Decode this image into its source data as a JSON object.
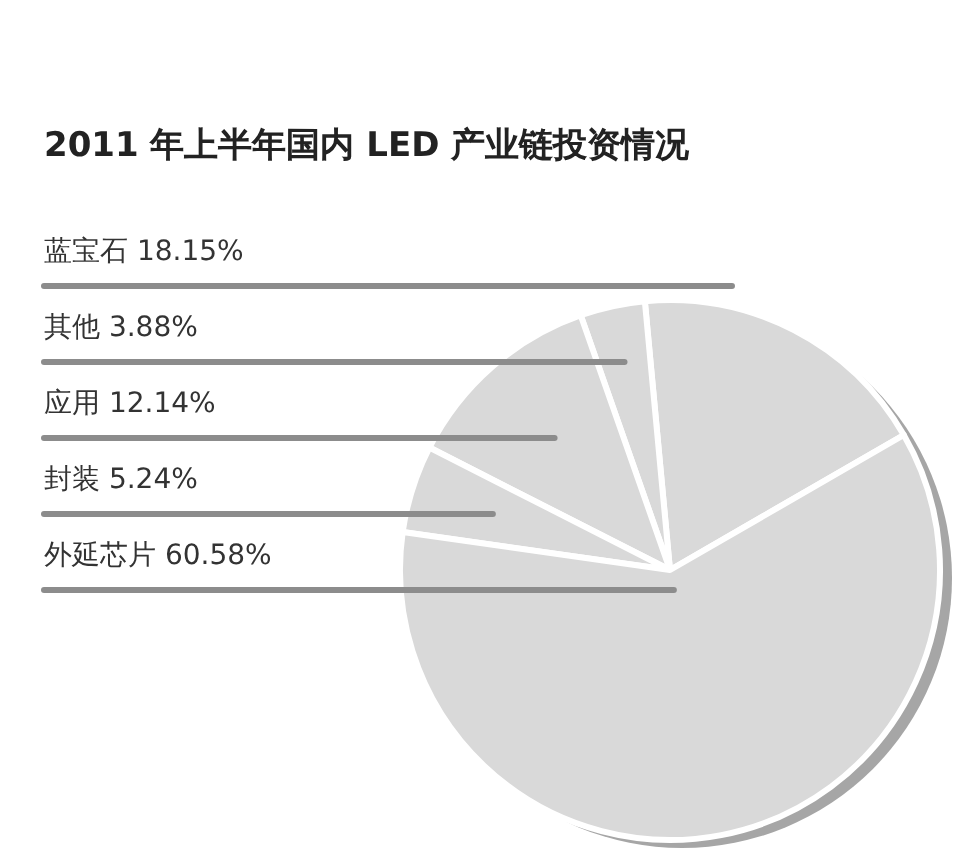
{
  "chart_data": {
    "type": "pie",
    "title": "2011 年上半年国内 LED 产业链投资情况",
    "categories": [
      "蓝宝石",
      "其他",
      "应用",
      "封装",
      "外延芯片"
    ],
    "values": [
      18.15,
      3.88,
      12.14,
      5.24,
      60.58
    ],
    "value_labels": [
      "18.15%",
      "3.88%",
      "12.14%",
      "5.24%",
      "60.58%"
    ],
    "colors": [
      "#d9d9d9",
      "#d9d9d9",
      "#d9d9d9",
      "#d9d9d9",
      "#d9d9d9"
    ]
  }
}
